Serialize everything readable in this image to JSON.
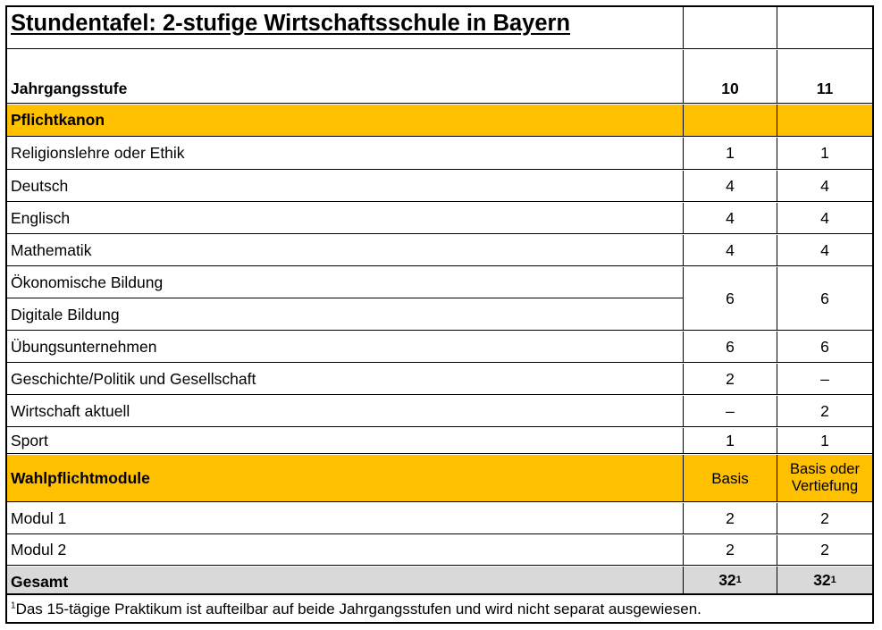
{
  "title": "Stundentafel: 2-stufige Wirtschaftsschule in Bayern",
  "header": {
    "label": "Jahrgangsstufe",
    "col1": "10",
    "col2": "11"
  },
  "pflicht": {
    "label": "Pflichtkanon",
    "rows": [
      {
        "subject": "Religionslehre oder Ethik",
        "v10": "1",
        "v11": "1"
      },
      {
        "subject": "Deutsch",
        "v10": "4",
        "v11": "4"
      },
      {
        "subject": "Englisch",
        "v10": "4",
        "v11": "4"
      },
      {
        "subject": "Mathematik",
        "v10": "4",
        "v11": "4"
      }
    ],
    "combined": {
      "subject_a": "Ökonomische Bildung",
      "subject_b": "Digitale Bildung",
      "v10": "6",
      "v11": "6"
    },
    "rows2": [
      {
        "subject": "Übungsunternehmen",
        "v10": "6",
        "v11": "6"
      },
      {
        "subject": "Geschichte/Politik und Gesellschaft",
        "v10": "2",
        "v11": "–"
      },
      {
        "subject": "Wirtschaft aktuell",
        "v10": "–",
        "v11": "2"
      },
      {
        "subject": "Sport",
        "v10": "1",
        "v11": "1"
      }
    ]
  },
  "wahl": {
    "label": "Wahlpflichtmodule",
    "v10": "Basis",
    "v11_line1": "Basis oder",
    "v11_line2": "Vertiefung",
    "rows": [
      {
        "subject": "Modul 1",
        "v10": "2",
        "v11": "2"
      },
      {
        "subject": "Modul 2",
        "v10": "2",
        "v11": "2"
      }
    ]
  },
  "total": {
    "label": "Gesamt",
    "v10": "32",
    "v11": "32",
    "sup": "1"
  },
  "footnote": {
    "mark": "1",
    "text": "Das 15-tägige Praktikum ist aufteilbar auf beide Jahrgangsstufen und wird nicht separat ausgewiesen."
  }
}
